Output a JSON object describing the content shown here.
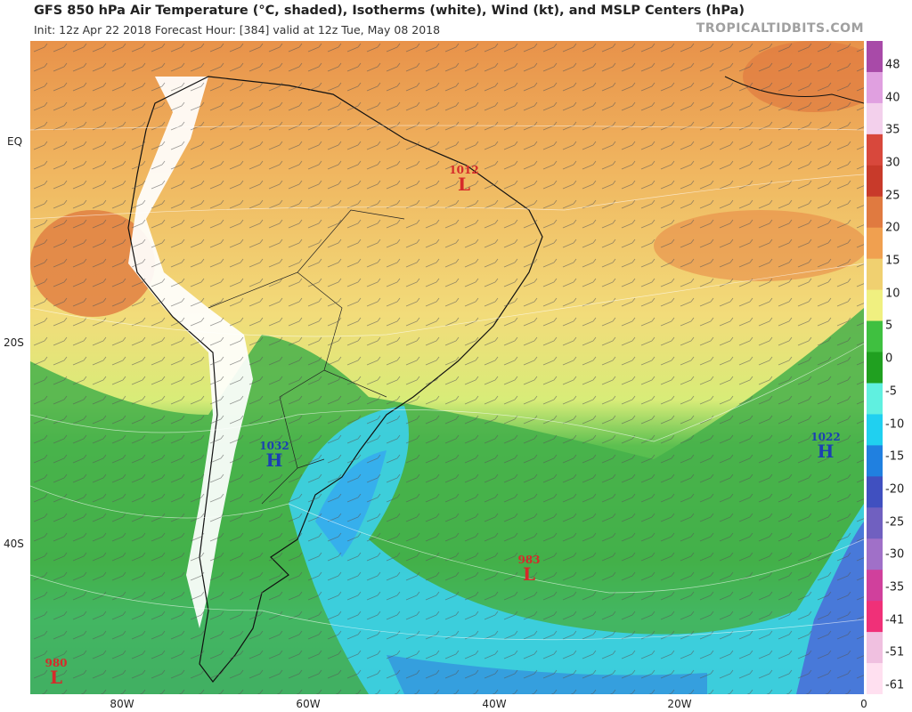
{
  "header": {
    "title": "GFS 850 hPa Air Temperature (°C, shaded), Isotherms (white), Wind (kt), and MSLP Centers (hPa)",
    "subtitle": "Init: 12z Apr 22 2018   Forecast Hour: [384]   valid at 12z Tue, May 08 2018",
    "credit": "TROPICALTIDBITS.COM"
  },
  "axes": {
    "lat_labels": [
      "EQ",
      "20S",
      "40S"
    ],
    "lon_labels": [
      "80W",
      "60W",
      "40W",
      "20W",
      "0"
    ]
  },
  "colorbar": {
    "labels": [
      "48",
      "40",
      "35",
      "30",
      "25",
      "20",
      "15",
      "10",
      "5",
      "0",
      "-5",
      "-10",
      "-15",
      "-20",
      "-25",
      "-30",
      "-35",
      "-41",
      "-51",
      "-61"
    ],
    "colors": [
      "#a84aa8",
      "#e0a0e0",
      "#f3d0ec",
      "#d8483c",
      "#c83a2a",
      "#e07a40",
      "#f0a050",
      "#f0d070",
      "#f0f080",
      "#3fc040",
      "#20a020",
      "#60f0e0",
      "#20d0f0",
      "#2080e0",
      "#4050c0",
      "#7060c0",
      "#a070c8",
      "#d0409c",
      "#f03078",
      "#f0c0e0",
      "#ffe0f0"
    ]
  },
  "pressure_centers": [
    {
      "type": "L",
      "value": "1012"
    },
    {
      "type": "H",
      "value": "1032"
    },
    {
      "type": "H",
      "value": "1022"
    },
    {
      "type": "L",
      "value": "983"
    },
    {
      "type": "L",
      "value": "980"
    }
  ]
}
